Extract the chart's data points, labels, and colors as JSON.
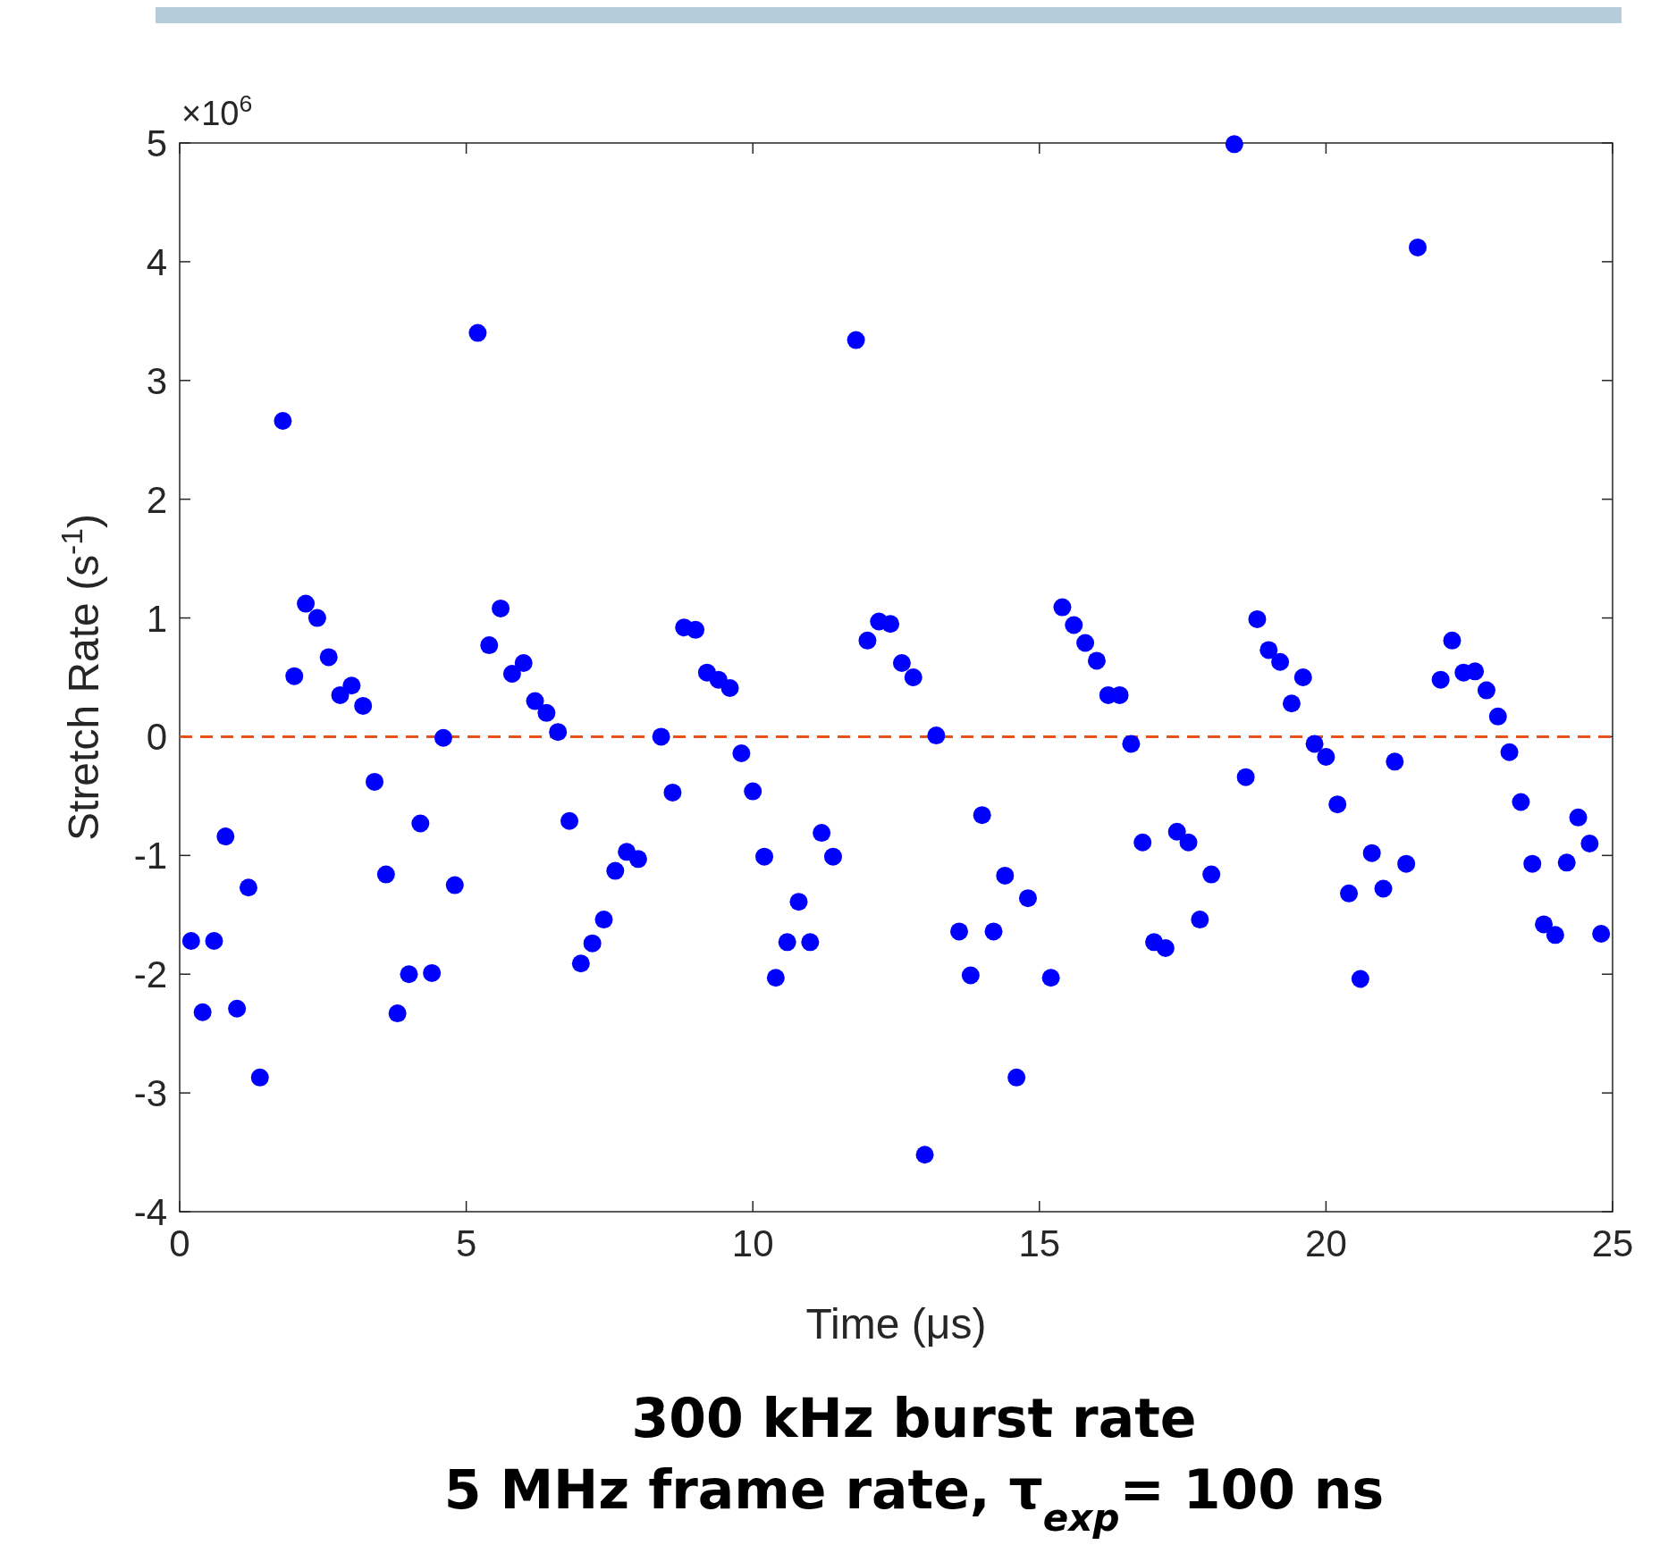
{
  "chart_data": {
    "type": "scatter",
    "xlabel": "Time (μs)",
    "ylabel": "Stretch Rate (s$^{-1}$)",
    "xlim": [
      0,
      25
    ],
    "xticks": [
      0,
      5,
      10,
      15,
      20,
      25
    ],
    "ylim": [
      -4,
      5
    ],
    "yticks": [
      -4,
      -3,
      -2,
      -1,
      0,
      1,
      2,
      3,
      4,
      5
    ],
    "grid": false,
    "marker": "circle",
    "x": [
      0.2,
      0.4,
      0.6,
      0.8,
      1.0,
      1.2,
      1.4,
      1.8,
      2.0,
      2.2,
      2.4,
      2.6,
      2.8,
      3.0,
      3.2,
      3.4,
      3.6,
      3.8,
      4.0,
      4.2,
      4.4,
      4.6,
      4.8,
      5.2,
      5.4,
      5.6,
      5.8,
      6.0,
      6.2,
      6.4,
      6.6,
      6.8,
      7.0,
      7.2,
      7.4,
      7.6,
      7.8,
      8.0,
      8.4,
      8.6,
      8.8,
      9.0,
      9.2,
      9.4,
      9.6,
      9.8,
      10.0,
      10.2,
      10.4,
      10.6,
      10.8,
      11.0,
      11.2,
      11.4,
      11.8,
      12.0,
      12.2,
      12.4,
      12.6,
      12.8,
      13.0,
      13.2,
      13.6,
      13.8,
      14.0,
      14.2,
      14.4,
      14.6,
      14.8,
      15.2,
      15.4,
      15.6,
      15.8,
      16.0,
      16.2,
      16.4,
      16.6,
      16.8,
      17.0,
      17.2,
      17.4,
      17.6,
      17.8,
      18.0,
      18.4,
      18.6,
      18.8,
      19.0,
      19.2,
      19.4,
      19.6,
      19.8,
      20.0,
      20.2,
      20.4,
      20.6,
      20.8,
      21.0,
      21.2,
      21.4,
      21.6,
      22.0,
      22.2,
      22.4,
      22.6,
      22.8,
      23.0,
      23.2,
      23.4,
      23.6,
      23.8,
      24.0,
      24.2,
      24.4,
      24.6,
      24.8
    ],
    "series": [
      {
        "color": "#0000ff",
        "values": [
          -1.72,
          -2.32,
          -1.72,
          -0.84,
          -2.29,
          -1.27,
          -2.87,
          2.66,
          0.51,
          1.12,
          1.0,
          0.67,
          0.35,
          0.43,
          0.26,
          -0.38,
          -1.16,
          -2.33,
          -2.0,
          -0.73,
          -1.99,
          -0.01,
          -1.25,
          3.4,
          0.77,
          1.08,
          0.53,
          0.62,
          0.3,
          0.2,
          0.04,
          -0.71,
          -1.91,
          -1.74,
          -1.54,
          -1.13,
          -0.97,
          -1.03,
          0.0,
          -0.47,
          0.92,
          0.9,
          0.54,
          0.48,
          0.41,
          -0.14,
          -0.46,
          -1.01,
          -2.03,
          -1.73,
          -1.39,
          -1.73,
          -0.81,
          -1.01,
          3.34,
          0.81,
          0.97,
          0.95,
          0.62,
          0.5,
          -3.52,
          0.01,
          -1.64,
          -2.01,
          -0.66,
          -1.64,
          -1.17,
          -2.87,
          -1.36,
          -2.03,
          1.09,
          0.94,
          0.79,
          0.64,
          0.35,
          0.35,
          -0.06,
          -0.89,
          -1.73,
          -1.78,
          -0.8,
          -0.89,
          -1.54,
          -1.16,
          4.99,
          -0.34,
          0.99,
          0.73,
          0.63,
          0.28,
          0.5,
          -0.06,
          -0.17,
          -0.57,
          -1.32,
          -2.04,
          -0.98,
          -1.28,
          -0.21,
          -1.07,
          4.12,
          0.48,
          0.81,
          0.54,
          0.55,
          0.39,
          0.17,
          -0.13,
          -0.55,
          -1.07,
          -1.58,
          -1.67,
          -1.06,
          -0.68,
          -0.9,
          -1.66
        ]
      }
    ],
    "ref_lines": [
      {
        "axis": "y",
        "value": 0,
        "color": "#e8501c",
        "line_style": "dashed"
      }
    ],
    "annotations": [
      "×10$^{6}$",
      "300 kHz burst rate",
      "5 MHz frame rate, τ$_{exp}$= 100 ns"
    ]
  }
}
